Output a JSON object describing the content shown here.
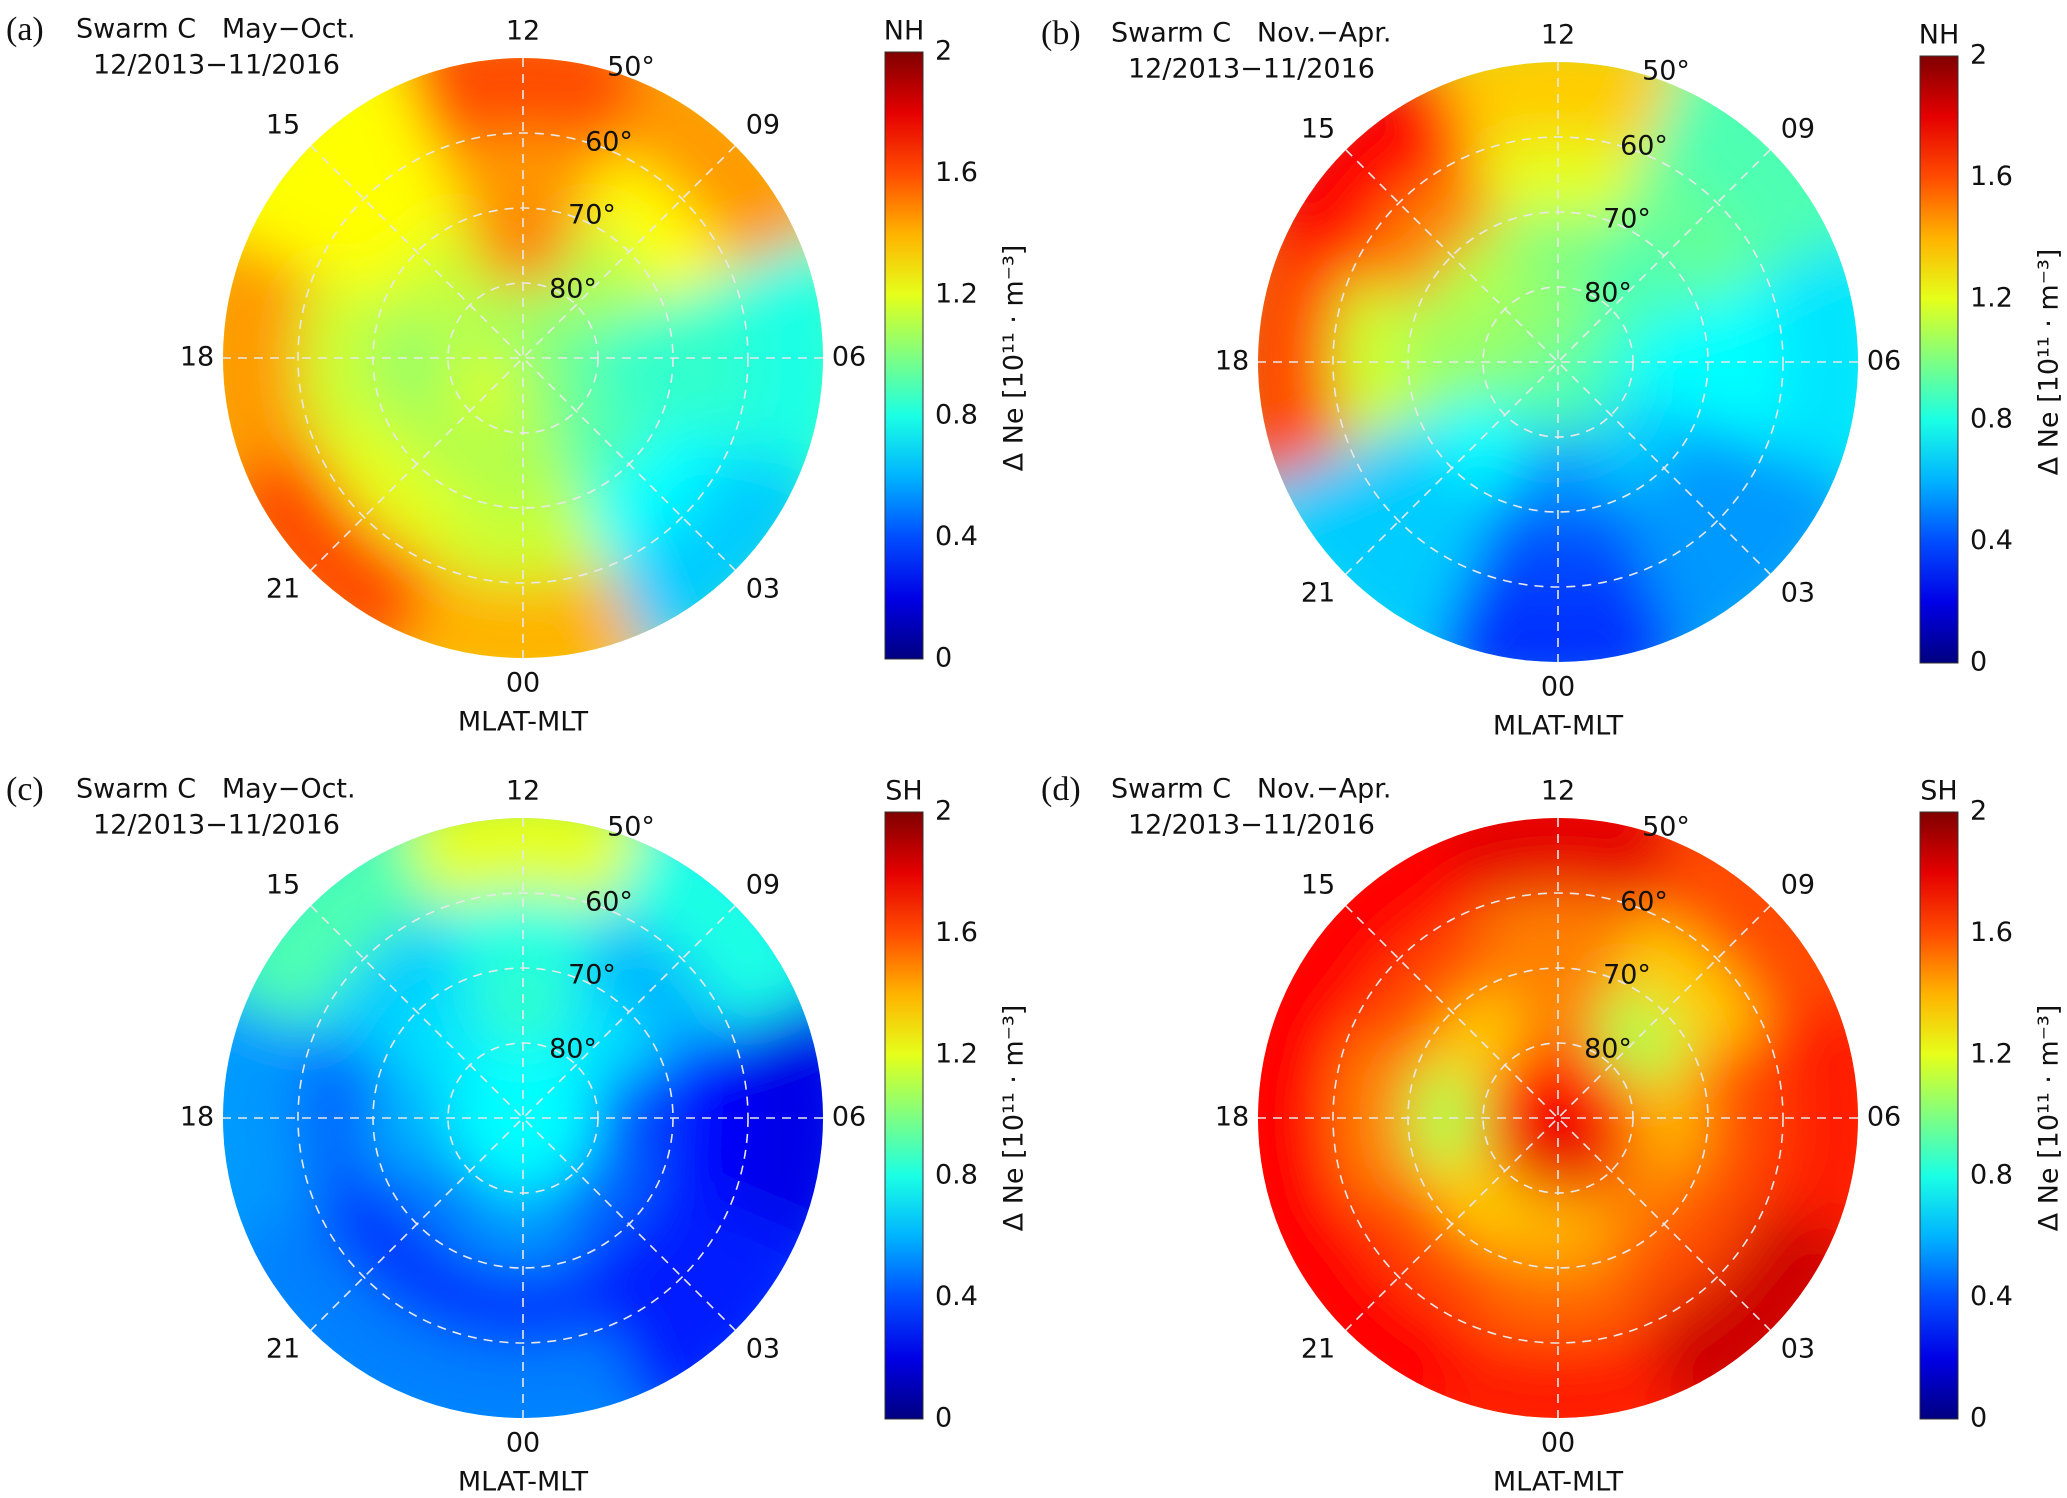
{
  "chart_data": [
    {
      "type": "heatmap",
      "projection": "polar",
      "panel_tag": "(a)",
      "title": "Swarm C   May−Oct.",
      "subtitle": "12/2013−11/2016",
      "hemisphere": "NH",
      "xlabel": "MLAT-MLT",
      "colorbar_label": "Δ Ne [10¹¹ · m⁻³]",
      "colorbar_ticks": [
        "0",
        "0.4",
        "0.8",
        "1.2",
        "1.6",
        "2"
      ],
      "clim": [
        0,
        2
      ],
      "colormap": "jet",
      "mlt_labels": [
        "00",
        "03",
        "06",
        "09",
        "12",
        "15",
        "18",
        "21"
      ],
      "lat_labels": [
        "50°",
        "60°",
        "70°",
        "80°"
      ],
      "lat_range": [
        50,
        90
      ],
      "mlt_bins": [
        0,
        3,
        6,
        9,
        12,
        15,
        18,
        21
      ],
      "lat_bins": [
        85,
        75,
        65,
        55
      ],
      "values": [
        [
          1.1,
          1.0,
          0.95,
          1.0,
          1.1,
          1.05,
          1.15,
          1.2
        ],
        [
          1.1,
          0.9,
          0.85,
          1.1,
          1.5,
          1.15,
          1.05,
          1.1
        ],
        [
          1.15,
          0.75,
          0.85,
          1.25,
          1.45,
          1.25,
          1.15,
          1.2
        ],
        [
          1.4,
          0.65,
          0.8,
          1.45,
          1.6,
          1.25,
          1.45,
          1.6
        ]
      ]
    },
    {
      "type": "heatmap",
      "projection": "polar",
      "panel_tag": "(b)",
      "title": "Swarm C   Nov.−Apr.",
      "subtitle": "12/2013−11/2016",
      "hemisphere": "NH",
      "xlabel": "MLAT-MLT",
      "colorbar_label": "Δ Ne [10¹¹ · m⁻³]",
      "colorbar_ticks": [
        "0",
        "0.4",
        "0.8",
        "1.2",
        "1.6",
        "2"
      ],
      "clim": [
        0,
        2
      ],
      "colormap": "jet",
      "mlt_labels": [
        "00",
        "03",
        "06",
        "09",
        "12",
        "15",
        "18",
        "21"
      ],
      "lat_labels": [
        "50°",
        "60°",
        "70°",
        "80°"
      ],
      "lat_range": [
        50,
        90
      ],
      "mlt_bins": [
        0,
        3,
        6,
        9,
        12,
        15,
        18,
        21
      ],
      "lat_bins": [
        85,
        75,
        65,
        55
      ],
      "values": [
        [
          0.9,
          0.9,
          0.85,
          0.95,
          1.05,
          1.0,
          1.05,
          0.9
        ],
        [
          0.55,
          0.65,
          0.75,
          0.9,
          1.0,
          1.1,
          1.05,
          0.75
        ],
        [
          0.4,
          0.55,
          0.75,
          0.95,
          1.2,
          1.5,
          1.15,
          0.65
        ],
        [
          0.35,
          0.55,
          0.7,
          0.9,
          1.35,
          1.75,
          1.6,
          0.65
        ]
      ]
    },
    {
      "type": "heatmap",
      "projection": "polar",
      "panel_tag": "(c)",
      "title": "Swarm C   May−Oct.",
      "subtitle": "12/2013−11/2016",
      "hemisphere": "SH",
      "xlabel": "MLAT-MLT",
      "colorbar_label": "Δ Ne [10¹¹ · m⁻³]",
      "colorbar_ticks": [
        "0",
        "0.4",
        "0.8",
        "1.2",
        "1.6",
        "2"
      ],
      "clim": [
        0,
        2
      ],
      "colormap": "jet",
      "mlt_labels": [
        "00",
        "03",
        "06",
        "09",
        "12",
        "15",
        "18",
        "21"
      ],
      "lat_labels": [
        "50°",
        "60°",
        "70°",
        "80°"
      ],
      "lat_range": [
        50,
        90
      ],
      "mlt_bins": [
        0,
        3,
        6,
        9,
        12,
        15,
        18,
        21
      ],
      "lat_bins": [
        85,
        75,
        65,
        55
      ],
      "values": [
        [
          0.75,
          0.75,
          0.75,
          0.75,
          0.75,
          0.75,
          0.75,
          0.75
        ],
        [
          0.55,
          0.45,
          0.4,
          0.7,
          0.85,
          0.7,
          0.6,
          0.5
        ],
        [
          0.35,
          0.3,
          0.25,
          0.6,
          0.8,
          0.65,
          0.45,
          0.35
        ],
        [
          0.5,
          0.3,
          0.2,
          0.8,
          1.2,
          0.9,
          0.55,
          0.5
        ]
      ]
    },
    {
      "type": "heatmap",
      "projection": "polar",
      "panel_tag": "(d)",
      "title": "Swarm C   Nov.−Apr.",
      "subtitle": "12/2013−11/2016",
      "hemisphere": "SH",
      "xlabel": "MLAT-MLT",
      "colorbar_label": "Δ Ne [10¹¹ · m⁻³]",
      "colorbar_ticks": [
        "0",
        "0.4",
        "0.8",
        "1.2",
        "1.6",
        "2"
      ],
      "clim": [
        0,
        2
      ],
      "colormap": "jet",
      "mlt_labels": [
        "00",
        "03",
        "06",
        "09",
        "12",
        "15",
        "18",
        "21"
      ],
      "lat_labels": [
        "50°",
        "60°",
        "70°",
        "80°"
      ],
      "lat_range": [
        50,
        90
      ],
      "mlt_bins": [
        0,
        3,
        6,
        9,
        12,
        15,
        18,
        21
      ],
      "lat_bins": [
        85,
        75,
        65,
        55
      ],
      "values": [
        [
          1.8,
          1.8,
          1.75,
          1.7,
          1.75,
          1.75,
          1.75,
          1.8
        ],
        [
          1.4,
          1.5,
          1.4,
          1.1,
          1.5,
          1.35,
          1.1,
          1.35
        ],
        [
          1.55,
          1.6,
          1.6,
          1.35,
          1.5,
          1.6,
          1.5,
          1.6
        ],
        [
          1.7,
          1.85,
          1.7,
          1.6,
          1.8,
          1.75,
          1.75,
          1.75
        ]
      ]
    }
  ]
}
